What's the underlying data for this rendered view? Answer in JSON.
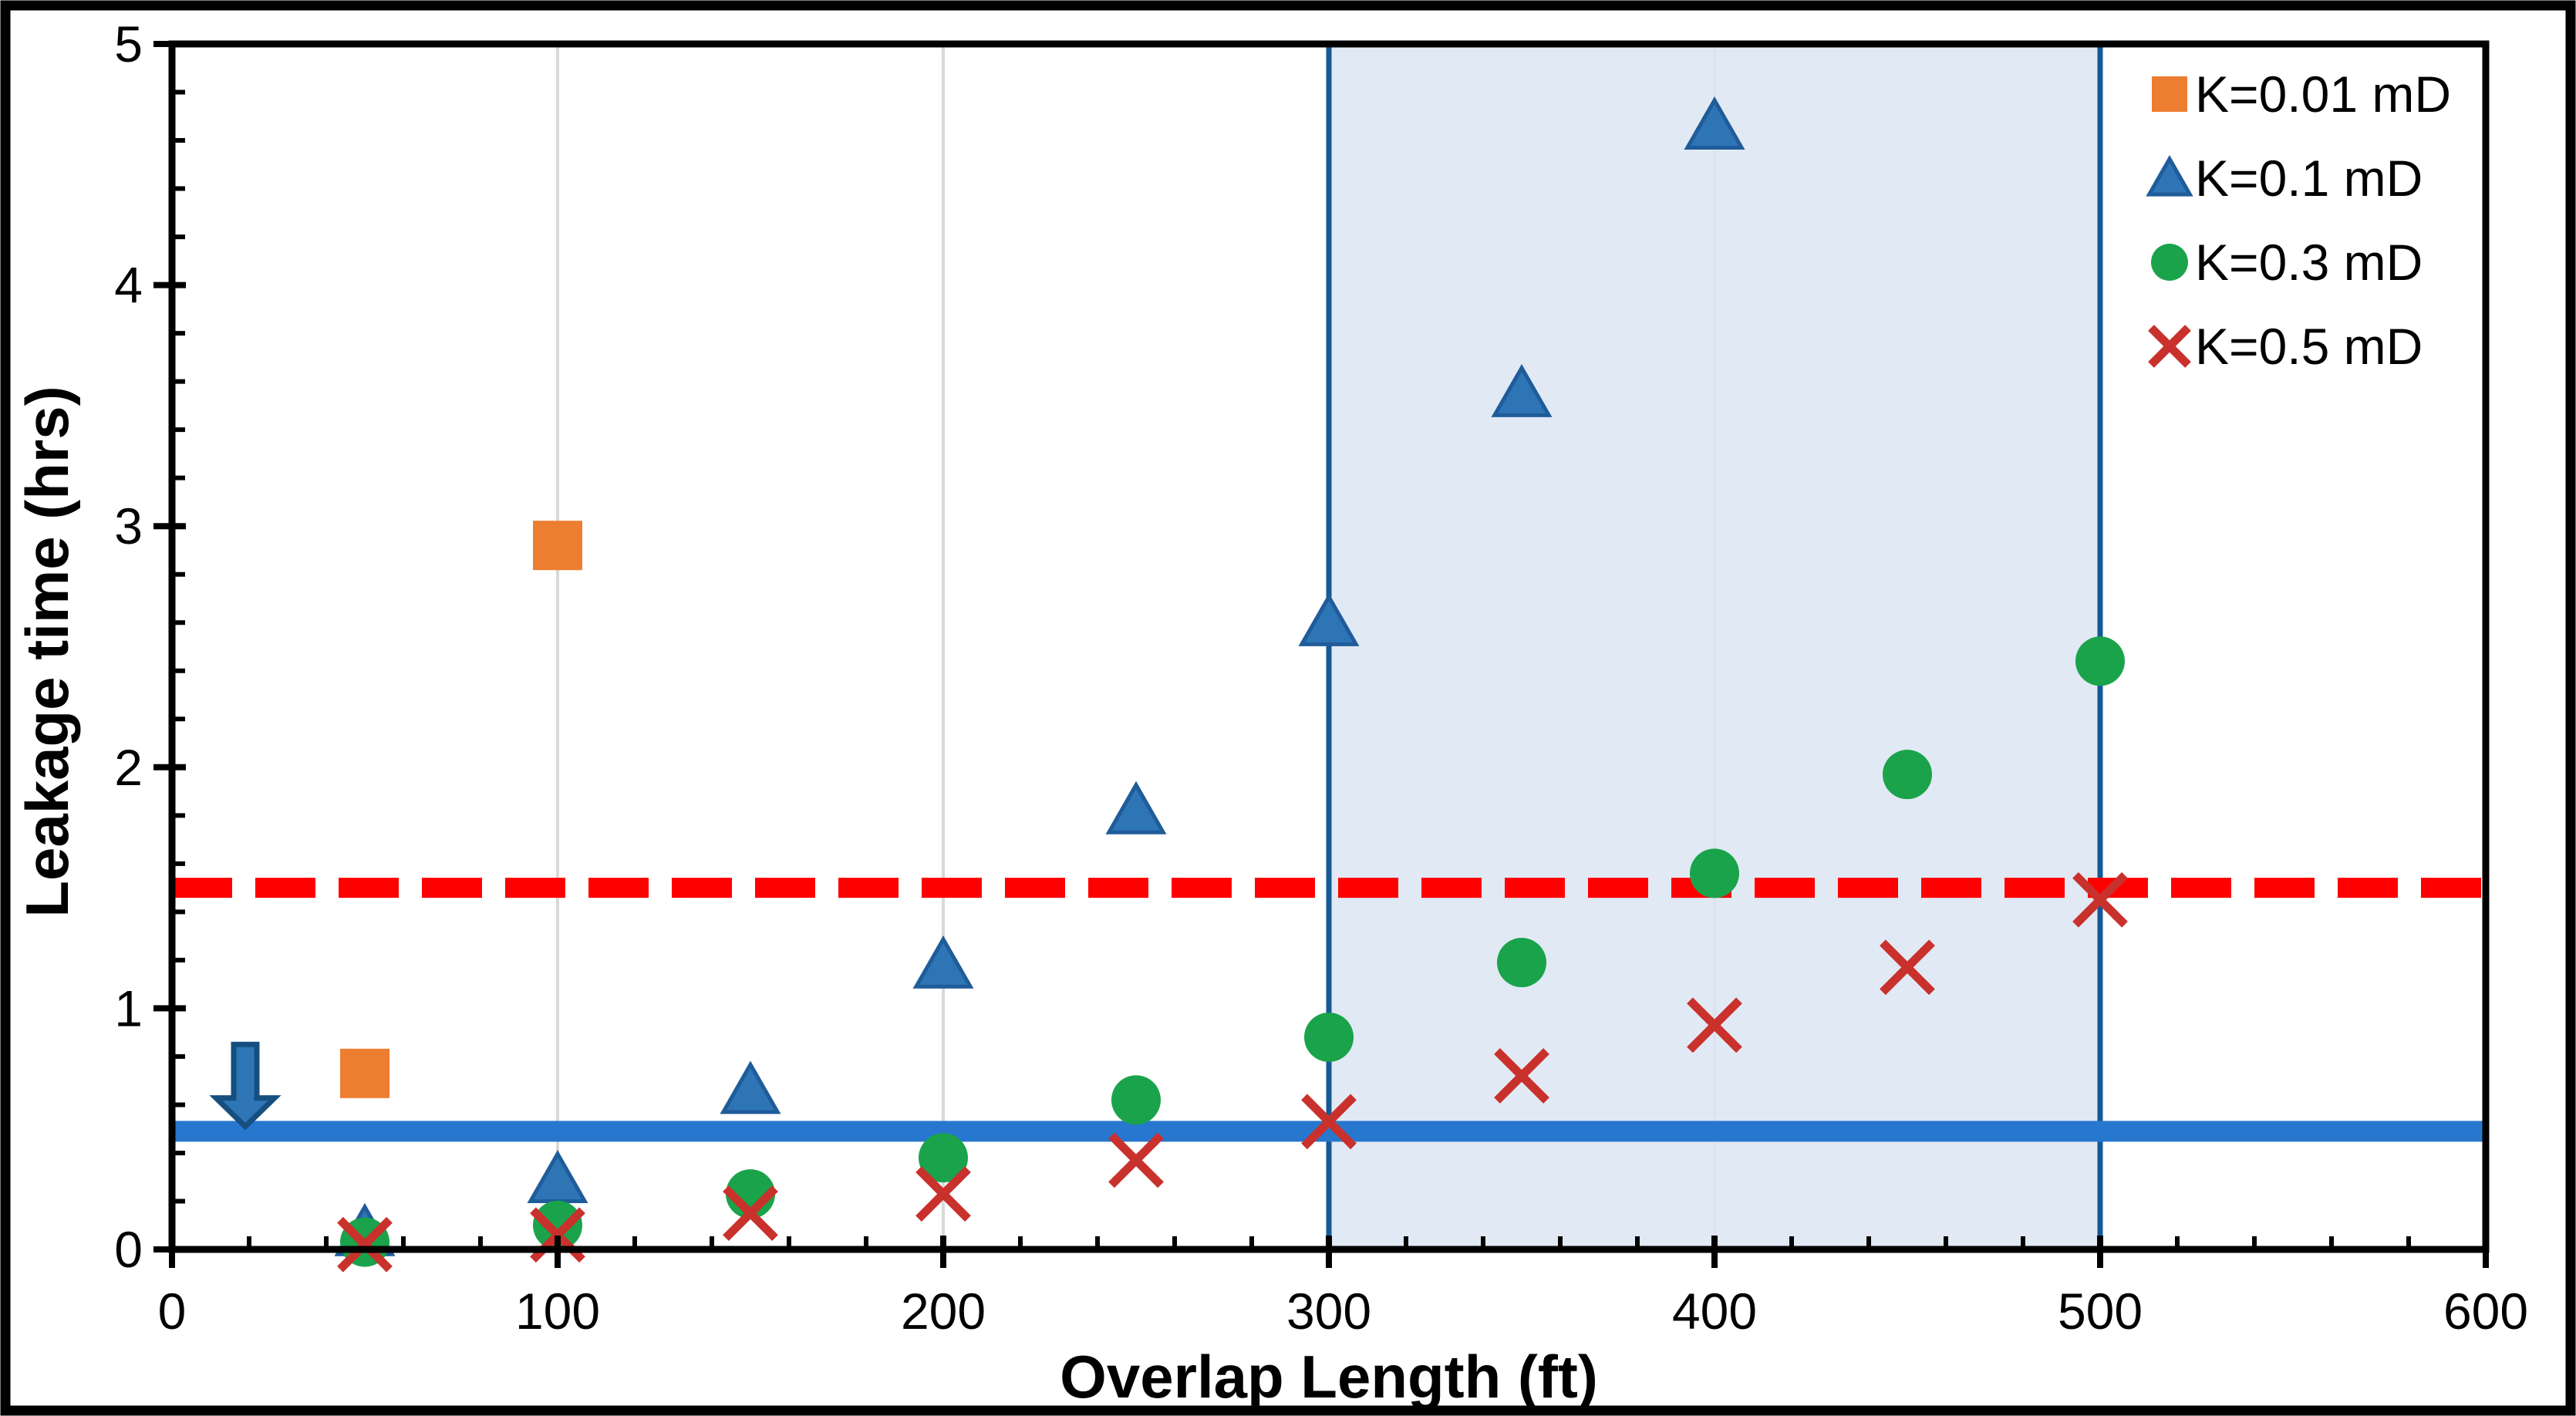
{
  "figure": {
    "background": "#ffffff",
    "outer_border_color": "#000000",
    "plot_border_color": "#000000",
    "grid_color": "#d9d9d9"
  },
  "chart_data": {
    "type": "scatter",
    "title": "",
    "xlabel": "Overlap Length (ft)",
    "ylabel": "Leakage time (hrs)",
    "xlim": [
      0,
      600
    ],
    "ylim": [
      0,
      5
    ],
    "x_major_ticks": [
      0,
      100,
      200,
      300,
      400,
      500,
      600
    ],
    "y_major_ticks": [
      0,
      1,
      2,
      3,
      4,
      5
    ],
    "x_minor_step": 20,
    "y_minor_step": 0.2,
    "gridlines_x": [
      100,
      200,
      300,
      400,
      500
    ],
    "grid_on": true,
    "legend_position": "top-right-inside",
    "series": [
      {
        "name": "K=0.01 mD",
        "marker": "square",
        "color": "#ED7D31",
        "x": [
          50,
          100
        ],
        "y": [
          0.73,
          2.92
        ]
      },
      {
        "name": "K=0.1 mD",
        "marker": "triangle",
        "color": "#2E75B6",
        "edge_color": "#1F5C99",
        "x": [
          50,
          100,
          150,
          200,
          250,
          300,
          350,
          400
        ],
        "y": [
          0.07,
          0.29,
          0.66,
          1.18,
          1.82,
          2.6,
          3.55,
          4.66
        ]
      },
      {
        "name": "K=0.3 mD",
        "marker": "circle",
        "color": "#1AA34A",
        "x": [
          50,
          100,
          150,
          200,
          250,
          300,
          350,
          400,
          450,
          500
        ],
        "y": [
          0.03,
          0.1,
          0.23,
          0.38,
          0.62,
          0.88,
          1.19,
          1.56,
          1.97,
          2.44
        ]
      },
      {
        "name": "K=0.5 mD",
        "marker": "x",
        "color": "#C9312C",
        "x": [
          50,
          100,
          150,
          200,
          250,
          300,
          350,
          400,
          450,
          500
        ],
        "y": [
          0.02,
          0.06,
          0.15,
          0.23,
          0.37,
          0.53,
          0.72,
          0.93,
          1.17,
          1.45
        ]
      }
    ],
    "reference_lines": [
      {
        "name": "red-dashed-threshold",
        "y": 1.5,
        "style": "dashed",
        "color": "#FF0000"
      },
      {
        "name": "blue-solid-threshold",
        "y": 0.49,
        "style": "solid",
        "color": "#2777CE"
      }
    ],
    "highlight_region": {
      "x0": 300,
      "x1": 500,
      "y0": 0,
      "y1": 5,
      "fill": "#DCE5F2",
      "fill_opacity": 0.85,
      "border_color": "#155A96"
    },
    "annotation_arrow": {
      "direction": "down",
      "x": 19,
      "y_from": 0.85,
      "y_to": 0.51,
      "fill": "#2E75B6",
      "edge_color": "#174E80"
    }
  }
}
